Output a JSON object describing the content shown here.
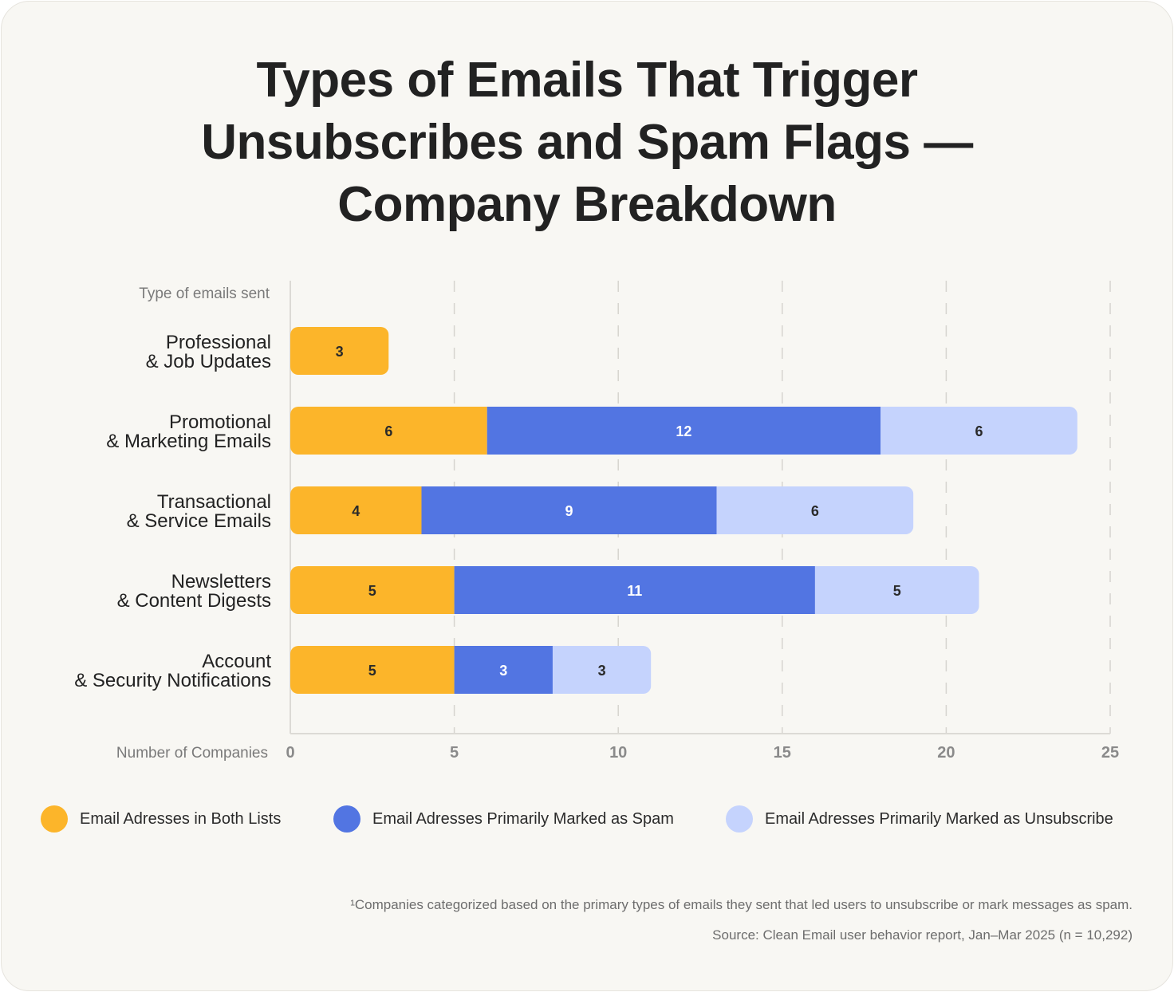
{
  "title_lines": [
    "Types of Emails That Trigger",
    "Unsubscribes and Spam Flags —",
    "Company Breakdown"
  ],
  "chart_data": {
    "type": "bar",
    "orientation": "horizontal",
    "stacked": true,
    "title": "Types of Emails That Trigger Unsubscribes and Spam Flags — Company Breakdown",
    "ylabel": "Type of emails sent",
    "xlabel": "Number of Companies",
    "xlim": [
      0,
      25
    ],
    "xticks": [
      0,
      5,
      10,
      15,
      20,
      25
    ],
    "grid": "vertical dashed",
    "legend_position": "bottom",
    "categories": [
      [
        "Professional",
        "& Job Updates"
      ],
      [
        "Promotional",
        "& Marketing Emails"
      ],
      [
        "Transactional",
        "& Service Emails"
      ],
      [
        "Newsletters",
        "& Content Digests"
      ],
      [
        "Account",
        "& Security Notifications"
      ]
    ],
    "series": [
      {
        "name": "Email Adresses in Both Lists",
        "color": "#fcb52a",
        "values": [
          3,
          6,
          4,
          5,
          5
        ]
      },
      {
        "name": "Email Adresses Primarily Marked as Spam",
        "color": "#5275e2",
        "values": [
          null,
          12,
          9,
          11,
          3
        ]
      },
      {
        "name": "Email Adresses Primarily Marked as Unsubscribe",
        "color": "#c5d3fd",
        "values": [
          null,
          6,
          6,
          5,
          3
        ]
      }
    ]
  },
  "footnote": "¹Companies categorized based on the primary types of emails they sent that led users to unsubscribe or mark messages as spam.",
  "source": "Source: Clean Email user behavior report, Jan–Mar 2025 (n = 10,292)"
}
